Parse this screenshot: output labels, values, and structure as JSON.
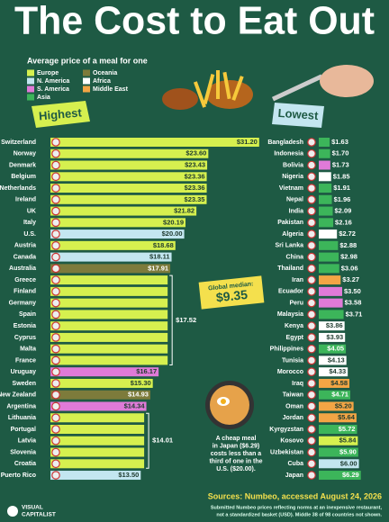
{
  "title": "The Cost to Eat Out",
  "subtitle": "Average price of a meal for one",
  "legend": [
    {
      "name": "Europe",
      "color": "#d6f04f"
    },
    {
      "name": "N. America",
      "color": "#c3e6f0"
    },
    {
      "name": "S. America",
      "color": "#e07ad8"
    },
    {
      "name": "Asia",
      "color": "#3cb55a"
    },
    {
      "name": "Oceania",
      "color": "#7d7b3b"
    },
    {
      "name": "Africa",
      "color": "#ffffff"
    },
    {
      "name": "Middle East",
      "color": "#f3a545"
    }
  ],
  "highest": {
    "label": "Highest",
    "rows": [
      {
        "country": "Switzerland",
        "region": "Europe",
        "value": 31.2,
        "value_label": "$31.20"
      },
      {
        "country": "Norway",
        "region": "Europe",
        "value": 23.6,
        "value_label": "$23.60"
      },
      {
        "country": "Denmark",
        "region": "Europe",
        "value": 23.43,
        "value_label": "$23.43"
      },
      {
        "country": "Belgium",
        "region": "Europe",
        "value": 23.36,
        "value_label": "$23.36"
      },
      {
        "country": "Netherlands",
        "region": "Europe",
        "value": 23.36,
        "value_label": "$23.36"
      },
      {
        "country": "Ireland",
        "region": "Europe",
        "value": 23.35,
        "value_label": "$23.35"
      },
      {
        "country": "UK",
        "region": "Europe",
        "value": 21.82,
        "value_label": "$21.82"
      },
      {
        "country": "Italy",
        "region": "Europe",
        "value": 20.19,
        "value_label": "$20.19"
      },
      {
        "country": "U.S.",
        "region": "N. America",
        "value": 20,
        "value_label": "$20.00"
      },
      {
        "country": "Austria",
        "region": "Europe",
        "value": 18.68,
        "value_label": "$18.68"
      },
      {
        "country": "Canada",
        "region": "N. America",
        "value": 18.11,
        "value_label": "$18.11"
      },
      {
        "country": "Australia",
        "region": "Oceania",
        "value": 17.91,
        "value_label": "$17.91"
      },
      {
        "countries": [
          "Greece",
          "Finland",
          "Germany",
          "Spain",
          "Estonia",
          "Cyprus",
          "Malta",
          "France"
        ],
        "region": "Europe",
        "value": 17.52,
        "value_label": "$17.52"
      },
      {
        "country": "Uruguay",
        "region": "S. America",
        "value": 16.17,
        "value_label": "$16.17"
      },
      {
        "country": "Sweden",
        "region": "Europe",
        "value": 15.3,
        "value_label": "$15.30"
      },
      {
        "country": "New Zealand",
        "region": "Oceania",
        "value": 14.93,
        "value_label": "$14.93"
      },
      {
        "country": "Argentina",
        "region": "S. America",
        "value": 14.34,
        "value_label": "$14.34"
      },
      {
        "countries": [
          "Lithuania",
          "Portugal",
          "Latvia",
          "Slovenia",
          "Croatia"
        ],
        "region": "Europe",
        "value": 14.01,
        "value_label": "$14.01"
      },
      {
        "country": "Puerto Rico",
        "region": "N. America",
        "value": 13.5,
        "value_label": "$13.50"
      }
    ]
  },
  "lowest": {
    "label": "Lowest",
    "rows": [
      {
        "country": "Bangladesh",
        "region": "Asia",
        "value": 1.63,
        "value_label": "$1.63"
      },
      {
        "country": "Indonesia",
        "region": "Asia",
        "value": 1.7,
        "value_label": "$1.70"
      },
      {
        "country": "Bolivia",
        "region": "S. America",
        "value": 1.73,
        "value_label": "$1.73"
      },
      {
        "country": "Nigeria",
        "region": "Africa",
        "value": 1.85,
        "value_label": "$1.85"
      },
      {
        "country": "Vietnam",
        "region": "Asia",
        "value": 1.91,
        "value_label": "$1.91"
      },
      {
        "country": "Nepal",
        "region": "Asia",
        "value": 1.96,
        "value_label": "$1.96"
      },
      {
        "country": "India",
        "region": "Asia",
        "value": 2.09,
        "value_label": "$2.09"
      },
      {
        "country": "Pakistan",
        "region": "Asia",
        "value": 2.16,
        "value_label": "$2.16"
      },
      {
        "country": "Algeria",
        "region": "Africa",
        "value": 2.72,
        "value_label": "$2.72"
      },
      {
        "country": "Sri Lanka",
        "region": "Asia",
        "value": 2.88,
        "value_label": "$2.88"
      },
      {
        "country": "China",
        "region": "Asia",
        "value": 2.98,
        "value_label": "$2.98"
      },
      {
        "country": "Thailand",
        "region": "Asia",
        "value": 3.06,
        "value_label": "$3.06"
      },
      {
        "country": "Iran",
        "region": "Middle East",
        "value": 3.27,
        "value_label": "$3.27"
      },
      {
        "country": "Ecuador",
        "region": "S. America",
        "value": 3.5,
        "value_label": "$3.50"
      },
      {
        "country": "Peru",
        "region": "S. America",
        "value": 3.58,
        "value_label": "$3.58"
      },
      {
        "country": "Malaysia",
        "region": "Asia",
        "value": 3.71,
        "value_label": "$3.71"
      },
      {
        "country": "Kenya",
        "region": "Africa",
        "value": 3.86,
        "value_label": "$3.86"
      },
      {
        "country": "Egypt",
        "region": "Africa",
        "value": 3.93,
        "value_label": "$3.93"
      },
      {
        "country": "Philippines",
        "region": "Asia",
        "value": 4.05,
        "value_label": "$4.05"
      },
      {
        "country": "Tunisia",
        "region": "Africa",
        "value": 4.13,
        "value_label": "$4.13"
      },
      {
        "country": "Morocco",
        "region": "Africa",
        "value": 4.33,
        "value_label": "$4.33"
      },
      {
        "country": "Iraq",
        "region": "Middle East",
        "value": 4.58,
        "value_label": "$4.58"
      },
      {
        "country": "Taiwan",
        "region": "Asia",
        "value": 4.71,
        "value_label": "$4.71"
      },
      {
        "country": "Oman",
        "region": "Middle East",
        "value": 5.2,
        "value_label": "$5.20"
      },
      {
        "country": "Jordan",
        "region": "Middle East",
        "value": 5.64,
        "value_label": "$5.64"
      },
      {
        "country": "Kyrgyzstan",
        "region": "Asia",
        "value": 5.72,
        "value_label": "$5.72"
      },
      {
        "country": "Kosovo",
        "region": "Europe",
        "value": 5.84,
        "value_label": "$5.84"
      },
      {
        "country": "Uzbekistan",
        "region": "Asia",
        "value": 5.9,
        "value_label": "$5.90"
      },
      {
        "country": "Cuba",
        "region": "N. America",
        "value": 6,
        "value_label": "$6.00"
      },
      {
        "country": "Japan",
        "region": "Asia",
        "value": 6.29,
        "value_label": "$6.29"
      }
    ]
  },
  "median": {
    "label": "Global median:",
    "value": 9.35,
    "value_label": "$9.35"
  },
  "annotation": [
    "A cheap meal",
    "in Japan ($6.29)",
    "costs less than a",
    "third of one in the",
    "U.S. ($20.00)."
  ],
  "source": "Sources: Numbeo, accessed August 24, 2026",
  "note": [
    "Submitted Numbeo prices reflecting norms at an inexpensive restaurant,",
    "not a standardized basket (USD). Middle 38 of 98 countries not shown."
  ],
  "logo": [
    "VISUAL",
    "CAPITALIST"
  ]
}
